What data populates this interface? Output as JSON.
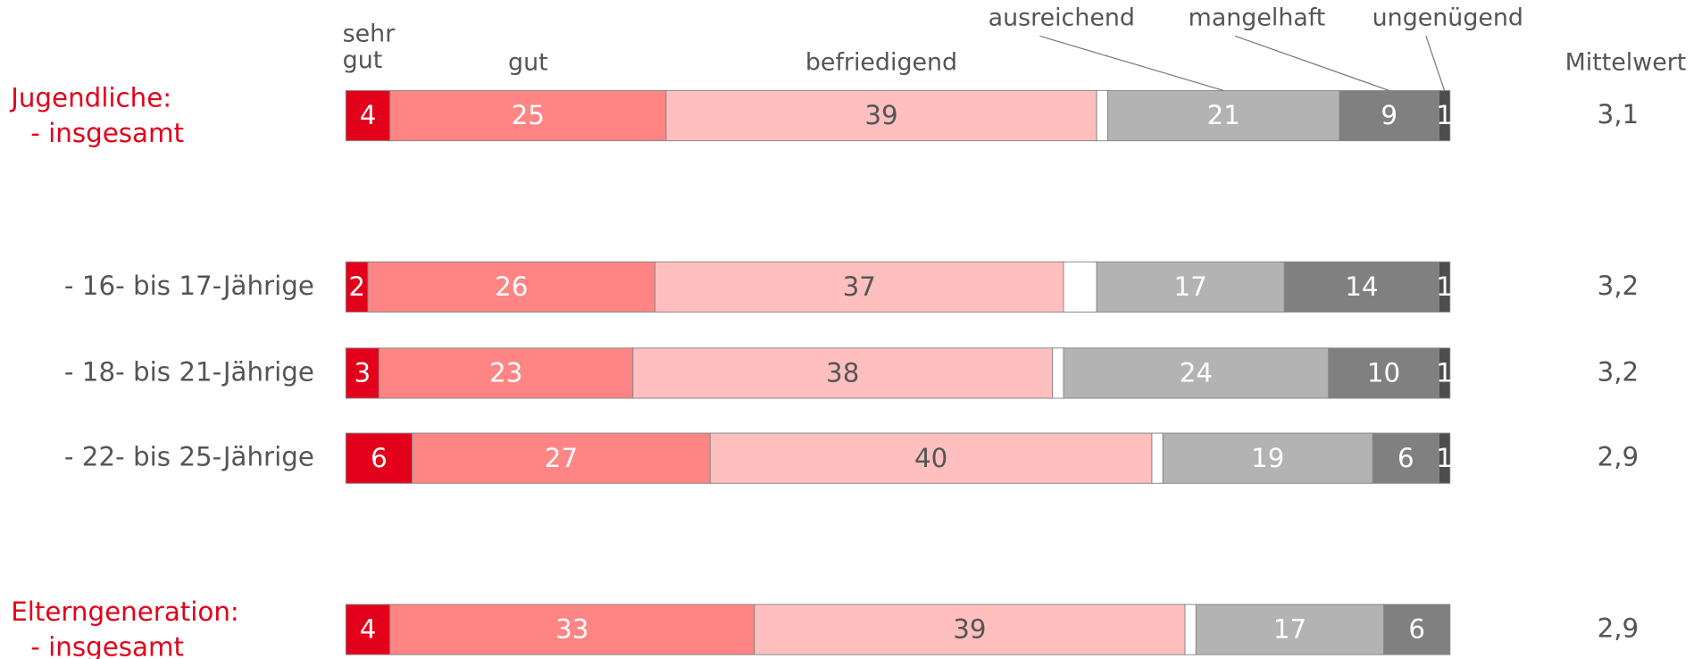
{
  "chart_data": {
    "type": "stacked-bar-horizontal",
    "categories": [
      "- insgesamt",
      "- 16- bis 17-Jährige",
      "- 18- bis 21-Jährige",
      "- 22- bis 25-Jährige",
      "- insgesamt"
    ],
    "category_groups": [
      "Jugendliche:",
      null,
      null,
      null,
      "Elterngeneration:"
    ],
    "group_color": "#e2001a",
    "xlim": [
      0,
      100
    ],
    "series": [
      {
        "name": "sehr gut",
        "color": "#e2001a",
        "label_color": "#ffffff",
        "values": [
          4,
          2,
          3,
          6,
          4
        ]
      },
      {
        "name": "gut",
        "color": "#ff8585",
        "label_color": "#ffffff",
        "values": [
          25,
          26,
          23,
          27,
          33
        ]
      },
      {
        "name": "befriedigend",
        "color": "#ffbfbf",
        "label_color": "#555555",
        "values": [
          39,
          37,
          38,
          40,
          39
        ]
      },
      {
        "name": null,
        "color": "#ffffff",
        "values": [
          1,
          3,
          1,
          1,
          1
        ]
      },
      {
        "name": "ausreichend",
        "color": "#b3b3b3",
        "label_color": "#ffffff",
        "values": [
          21,
          17,
          24,
          19,
          17
        ]
      },
      {
        "name": "mangelhaft",
        "color": "#808080",
        "label_color": "#ffffff",
        "values": [
          9,
          14,
          10,
          6,
          6
        ]
      },
      {
        "name": "ungenügend",
        "color": "#4d4d4d",
        "label_color": "#ffffff",
        "values": [
          1,
          1,
          1,
          1,
          null
        ]
      }
    ],
    "mean": {
      "label": "Mittelwert",
      "values": [
        3.1,
        3.2,
        3.2,
        2.9,
        2.9
      ],
      "value_labels": [
        "3,1",
        "3,2",
        "3,2",
        "2,9",
        "2,9"
      ]
    }
  }
}
